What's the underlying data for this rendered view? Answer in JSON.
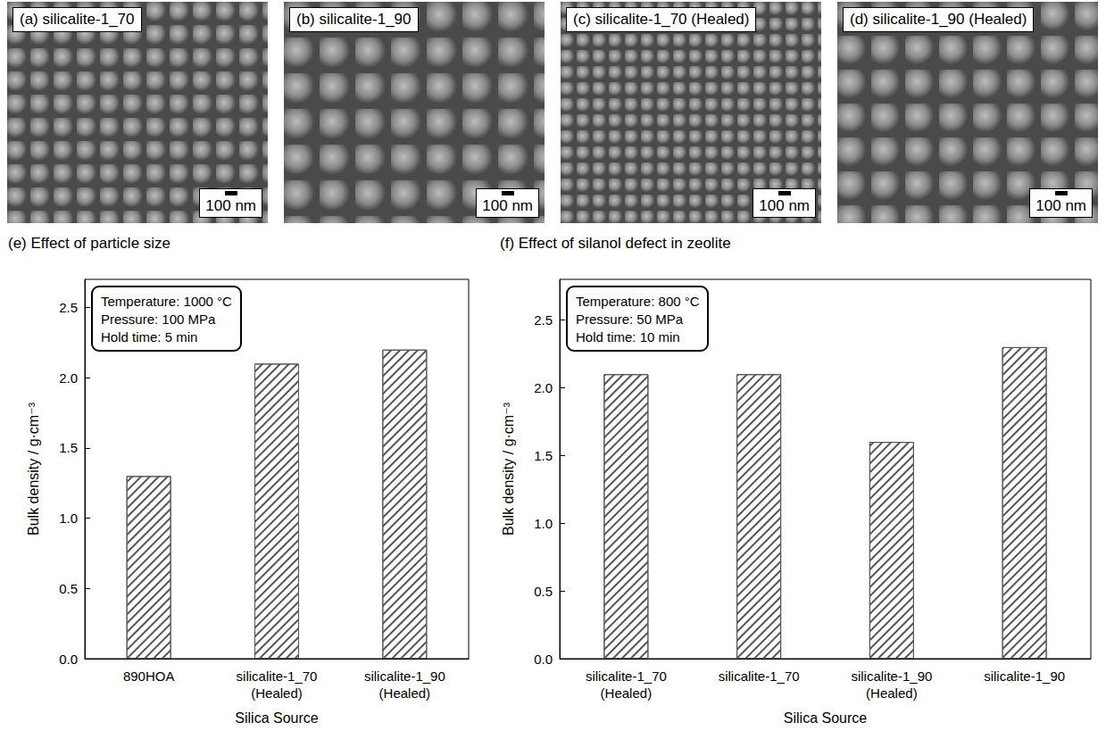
{
  "micrographs": [
    {
      "label": "(a) silicalite-1_70",
      "scale_bar": "100 nm"
    },
    {
      "label": "(b) silicalite-1_90",
      "scale_bar": "100 nm"
    },
    {
      "label": "(c) silicalite-1_70 (Healed)",
      "scale_bar": "100 nm"
    },
    {
      "label": "(d) silicalite-1_90 (Healed)",
      "scale_bar": "100 nm"
    }
  ],
  "chart_data": [
    {
      "type": "bar",
      "title": "(e) Effect of particle size",
      "annotation": [
        "Temperature: 1000 °C",
        "Pressure: 100 MPa",
        "Hold time: 5 min"
      ],
      "categories": [
        "890HOA",
        "silicalite-1_70 (Healed)",
        "silicalite-1_90 (Healed)"
      ],
      "values": [
        1.3,
        2.1,
        2.2
      ],
      "color": "#ffffff",
      "xlabel": "Silica Source",
      "ylabel": "Bulk density / g·cm⁻³",
      "ylim": [
        0,
        2.7
      ],
      "yticks": [
        {
          "value": 0,
          "label": "0.0"
        },
        {
          "value": 0.5,
          "label": "0.5"
        },
        {
          "value": 1,
          "label": "1.0"
        },
        {
          "value": 1.5,
          "label": "1.5"
        },
        {
          "value": 2,
          "label": "2.0"
        },
        {
          "value": 2.5,
          "label": "2.5"
        }
      ],
      "grid": false
    },
    {
      "type": "bar",
      "title": "(f) Effect of silanol defect in zeolite",
      "annotation": [
        "Temperature: 800 °C",
        "Pressure: 50 MPa",
        "Hold time: 10 min"
      ],
      "categories": [
        "silicalite-1_70 (Healed)",
        "silicalite-1_70",
        "silicalite-1_90 (Healed)",
        "silicalite-1_90"
      ],
      "values": [
        2.1,
        2.1,
        1.6,
        2.3
      ],
      "color": "#ffffff",
      "xlabel": "Silica Source",
      "ylabel": "Bulk density / g·cm⁻³",
      "ylim": [
        0,
        2.8
      ],
      "yticks": [
        {
          "value": 0,
          "label": "0.0"
        },
        {
          "value": 0.5,
          "label": "0.5"
        },
        {
          "value": 1,
          "label": "1.0"
        },
        {
          "value": 1.5,
          "label": "1.5"
        },
        {
          "value": 2,
          "label": "2.0"
        },
        {
          "value": 2.5,
          "label": "2.5"
        }
      ],
      "grid": false
    }
  ]
}
